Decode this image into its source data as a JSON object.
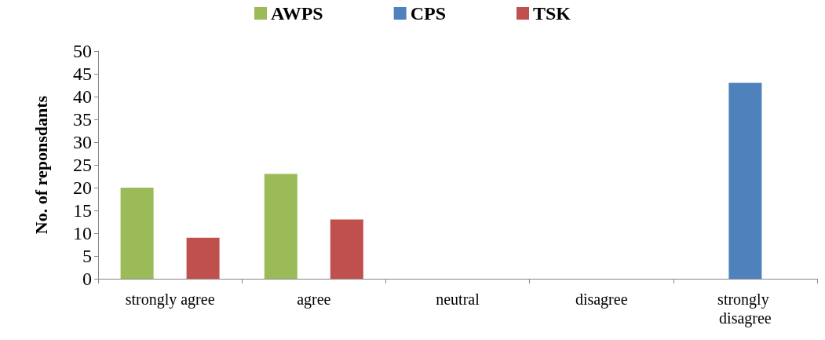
{
  "chart_data": {
    "type": "bar",
    "ylabel": "No. of reponsdants",
    "categories": [
      "strongly agree",
      "agree",
      "neutral",
      "disagree",
      "strongly disagree"
    ],
    "series": [
      {
        "name": "AWPS",
        "color": "#9bbb59",
        "values": [
          20,
          23,
          0,
          0,
          0
        ]
      },
      {
        "name": "CPS",
        "color": "#4f81bd",
        "values": [
          0,
          0,
          0,
          0,
          43
        ]
      },
      {
        "name": "TSK",
        "color": "#c0504d",
        "values": [
          9,
          13,
          0,
          0,
          0
        ]
      }
    ],
    "ylim": [
      0,
      50
    ],
    "yticks": [
      0,
      5,
      10,
      15,
      20,
      25,
      30,
      35,
      40,
      45,
      50
    ],
    "grid": false,
    "legend": "top"
  }
}
